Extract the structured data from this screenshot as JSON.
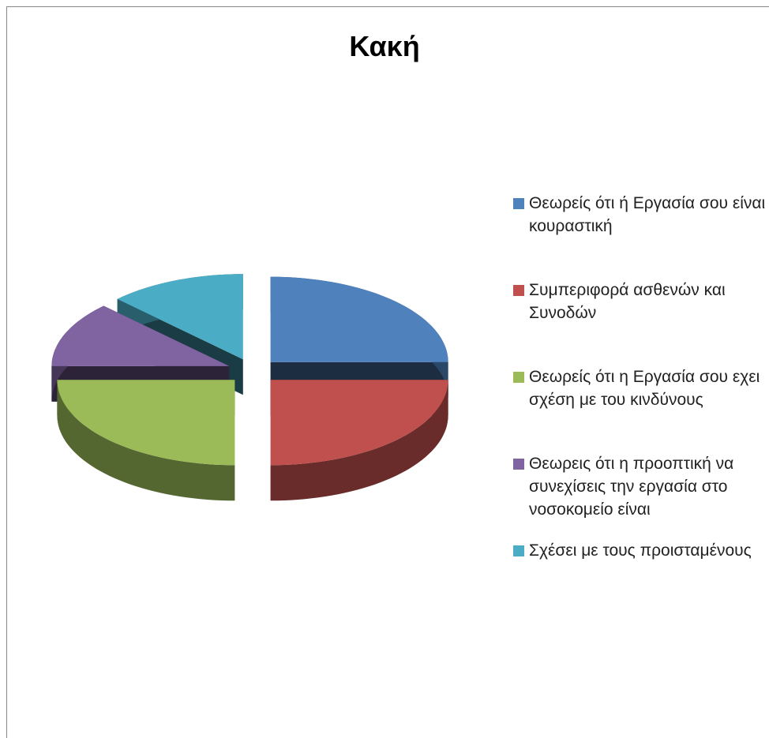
{
  "chart_data": {
    "type": "pie",
    "title": "Κακή",
    "categories": [
      "Θεωρείς ότι ή Εργασία σου είναι κουραστική",
      "Συμπεριφορά ασθενών και Συνοδών",
      "Θεωρείς ότι η Εργασία σου εχει σχέση με του κινδύνους",
      "Θεωρεις ότι η προοπτική να συνεχίσεις την εργασία στο νοσοκομείο είναι",
      "Σχέσει με τους προισταμένους"
    ],
    "values": [
      25,
      25,
      25,
      12.5,
      12.5
    ],
    "colors": [
      "#4f81bd",
      "#c0504d",
      "#9bbb59",
      "#8064a2",
      "#4bacc6"
    ],
    "legend": "right",
    "exploded": true,
    "three_d": true
  }
}
